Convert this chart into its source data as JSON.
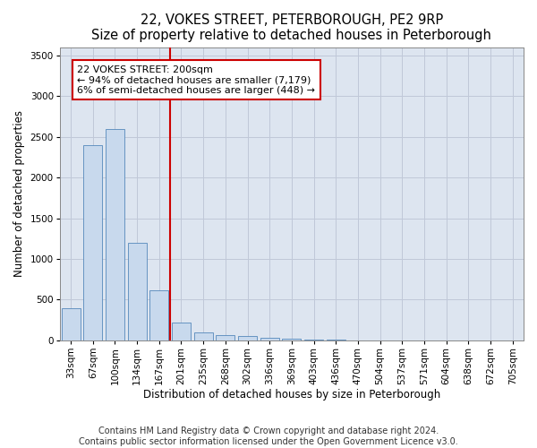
{
  "title": "22, VOKES STREET, PETERBOROUGH, PE2 9RP",
  "subtitle": "Size of property relative to detached houses in Peterborough",
  "xlabel": "Distribution of detached houses by size in Peterborough",
  "ylabel": "Number of detached properties",
  "footer_line1": "Contains HM Land Registry data © Crown copyright and database right 2024.",
  "footer_line2": "Contains public sector information licensed under the Open Government Licence v3.0.",
  "categories": [
    "33sqm",
    "67sqm",
    "100sqm",
    "134sqm",
    "167sqm",
    "201sqm",
    "235sqm",
    "268sqm",
    "302sqm",
    "336sqm",
    "369sqm",
    "403sqm",
    "436sqm",
    "470sqm",
    "504sqm",
    "537sqm",
    "571sqm",
    "604sqm",
    "638sqm",
    "672sqm",
    "705sqm"
  ],
  "values": [
    400,
    2400,
    2600,
    1200,
    620,
    220,
    100,
    60,
    50,
    30,
    20,
    10,
    5,
    3,
    2,
    1,
    1,
    1,
    0,
    0,
    0
  ],
  "bar_color": "#c8d9ed",
  "bar_edge_color": "#5588bb",
  "vline_color": "#cc0000",
  "vline_x_index": 5,
  "annotation_line1": "22 VOKES STREET: 200sqm",
  "annotation_line2": "← 94% of detached houses are smaller (7,179)",
  "annotation_line3": "6% of semi-detached houses are larger (448) →",
  "box_color": "#cc0000",
  "ylim": [
    0,
    3600
  ],
  "yticks": [
    0,
    500,
    1000,
    1500,
    2000,
    2500,
    3000,
    3500
  ],
  "grid_color": "#c0c8d8",
  "bg_color": "#dde5f0",
  "title_fontsize": 10.5,
  "axis_label_fontsize": 8.5,
  "tick_fontsize": 7.5,
  "footer_fontsize": 7.0,
  "annotation_fontsize": 8.0
}
